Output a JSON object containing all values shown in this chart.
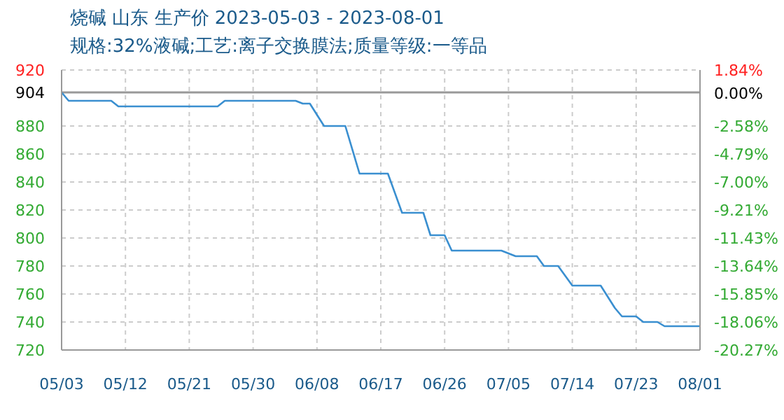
{
  "chart_data": {
    "type": "line",
    "title": "烧碱 山东 生产价 2023-05-03 - 2023-08-01",
    "subtitle": "规格:32%液碱;工艺:离子交换膜法;质量等级:一等品",
    "x": [
      "2023-05-03",
      "2023-05-04",
      "2023-05-10",
      "2023-05-11",
      "2023-05-25",
      "2023-05-26",
      "2023-06-05",
      "2023-06-06",
      "2023-06-07",
      "2023-06-09",
      "2023-06-12",
      "2023-06-14",
      "2023-06-18",
      "2023-06-20",
      "2023-06-23",
      "2023-06-24",
      "2023-06-26",
      "2023-06-27",
      "2023-07-04",
      "2023-07-06",
      "2023-07-09",
      "2023-07-10",
      "2023-07-12",
      "2023-07-14",
      "2023-07-18",
      "2023-07-20",
      "2023-07-21",
      "2023-07-23",
      "2023-07-24",
      "2023-07-26",
      "2023-07-27",
      "2023-08-01"
    ],
    "series": [
      {
        "color": "#3a8fd0",
        "values": [
          904,
          898,
          898,
          894,
          894,
          898,
          898,
          896,
          896,
          880,
          880,
          846,
          846,
          818,
          818,
          802,
          802,
          791,
          791,
          787,
          787,
          780,
          780,
          766,
          766,
          750,
          744,
          744,
          740,
          740,
          737,
          737
        ]
      }
    ],
    "xlim": [
      "2023-05-03",
      "2023-08-01"
    ],
    "xticks": [
      {
        "value": "2023-05-03",
        "label": "05/03"
      },
      {
        "value": "2023-05-12",
        "label": "05/12"
      },
      {
        "value": "2023-05-21",
        "label": "05/21"
      },
      {
        "value": "2023-05-30",
        "label": "05/30"
      },
      {
        "value": "2023-06-08",
        "label": "06/08"
      },
      {
        "value": "2023-06-17",
        "label": "06/17"
      },
      {
        "value": "2023-06-26",
        "label": "06/26"
      },
      {
        "value": "2023-07-05",
        "label": "07/05"
      },
      {
        "value": "2023-07-14",
        "label": "07/14"
      },
      {
        "value": "2023-07-23",
        "label": "07/23"
      },
      {
        "value": "2023-08-01",
        "label": "08/01"
      }
    ],
    "ylim": [
      720,
      920
    ],
    "yticks": [
      720,
      740,
      760,
      780,
      800,
      820,
      840,
      860,
      880,
      904,
      920
    ],
    "y2lim": [
      -20.27,
      1.84
    ],
    "y2ticks": [
      {
        "value": -20.27,
        "label": "-20.27%"
      },
      {
        "value": -18.06,
        "label": "-18.06%"
      },
      {
        "value": -15.85,
        "label": "-15.85%"
      },
      {
        "value": -13.64,
        "label": "-13.64%"
      },
      {
        "value": -11.43,
        "label": "-11.43%"
      },
      {
        "value": -9.21,
        "label": "-9.21%"
      },
      {
        "value": -7.0,
        "label": "-7.00%"
      },
      {
        "value": -4.79,
        "label": "-4.79%"
      },
      {
        "value": -2.58,
        "label": "-2.58%"
      },
      {
        "value": 0,
        "label": "0.00%"
      },
      {
        "value": 1.84,
        "label": "1.84%"
      }
    ],
    "ref_lines": [
      {
        "axis": "y",
        "value": 904,
        "color": "#999999"
      }
    ],
    "grid": true,
    "marker": "none",
    "line_style": "solid"
  }
}
